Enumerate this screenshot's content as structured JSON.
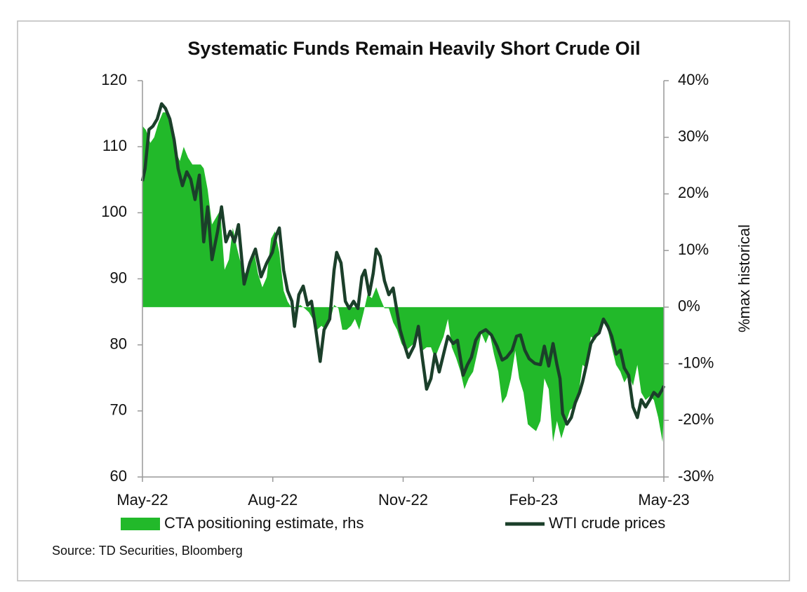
{
  "chart_data": {
    "type": "combo",
    "title": "Systematic Funds Remain Heavily Short Crude Oil",
    "y2label": "%max historical",
    "source": "Source: TD Securities, Bloomberg",
    "xlim": [
      0,
      12
    ],
    "xticks": [
      {
        "value": 0,
        "label": "May-22"
      },
      {
        "value": 3,
        "label": "Aug-22"
      },
      {
        "value": 6,
        "label": "Nov-22"
      },
      {
        "value": 9,
        "label": "Feb-23"
      },
      {
        "value": 12,
        "label": "May-23"
      }
    ],
    "ylim": [
      60,
      120
    ],
    "yticks": [
      60,
      70,
      80,
      90,
      100,
      110,
      120
    ],
    "y2lim": [
      -30,
      40
    ],
    "y2ticks": [
      {
        "value": -30,
        "label": "-30%"
      },
      {
        "value": -20,
        "label": "-20%"
      },
      {
        "value": -10,
        "label": "-10%"
      },
      {
        "value": 0,
        "label": "0%"
      },
      {
        "value": 10,
        "label": "10%"
      },
      {
        "value": 20,
        "label": "20%"
      },
      {
        "value": 30,
        "label": "30%"
      },
      {
        "value": 40,
        "label": "40%"
      }
    ],
    "series": [
      {
        "name": "CTA positioning estimate, rhs",
        "kind": "area",
        "axis": "y2",
        "color": "#22b92a",
        "x": [
          0,
          0.08,
          0.18,
          0.27,
          0.37,
          0.47,
          0.57,
          0.66,
          0.76,
          0.86,
          0.95,
          1.05,
          1.15,
          1.24,
          1.34,
          1.41,
          1.5,
          1.6,
          1.7,
          1.79,
          1.89,
          1.99,
          2.08,
          2.18,
          2.28,
          2.37,
          2.47,
          2.57,
          2.66,
          2.76,
          2.86,
          2.96,
          3.05,
          3.15,
          3.25,
          3.34,
          3.44,
          3.54,
          3.63,
          3.73,
          3.83,
          3.92,
          4.02,
          4.12,
          4.22,
          4.31,
          4.41,
          4.51,
          4.6,
          4.7,
          4.8,
          4.89,
          4.99,
          5.09,
          5.18,
          5.28,
          5.38,
          5.47,
          5.57,
          5.67,
          5.77,
          5.86,
          5.96,
          6.06,
          6.15,
          6.25,
          6.35,
          6.44,
          6.54,
          6.64,
          6.73,
          6.83,
          6.93,
          7.03,
          7.12,
          7.22,
          7.32,
          7.41,
          7.51,
          7.61,
          7.7,
          7.8,
          7.9,
          7.99,
          8.09,
          8.19,
          8.28,
          8.38,
          8.48,
          8.58,
          8.67,
          8.77,
          8.87,
          8.96,
          9.06,
          9.16,
          9.25,
          9.35,
          9.45,
          9.54,
          9.64,
          9.74,
          9.84,
          9.93,
          10.03,
          10.13,
          10.22,
          10.32,
          10.42,
          10.51,
          10.61,
          10.71,
          10.8,
          10.9,
          11,
          11.09,
          11.19,
          11.29,
          11.39,
          11.48,
          11.58,
          11.68,
          11.77,
          11.87,
          11.97,
          12
        ],
        "values": [
          32,
          31.3,
          29,
          30,
          32.6,
          34.4,
          34.4,
          31.3,
          27.6,
          25.8,
          28.3,
          26.4,
          25.2,
          25.2,
          25.2,
          24.5,
          20.8,
          14.6,
          15.9,
          17.1,
          6.6,
          8.4,
          14,
          10.3,
          7.2,
          5.9,
          7.2,
          9.7,
          5.9,
          3.5,
          5.3,
          12.1,
          13.4,
          9.7,
          2.9,
          1,
          -0.2,
          -0.2,
          0.4,
          -0.2,
          -0.9,
          -2.1,
          -4,
          -3.3,
          -4,
          -2.7,
          0.4,
          -0.2,
          -4,
          -4,
          -3.3,
          -2.1,
          -4,
          -0.9,
          2.2,
          1.6,
          3.5,
          1.6,
          -0.2,
          -0.2,
          -2.7,
          -4,
          -6.4,
          -7.7,
          -7.1,
          -6.4,
          -3.3,
          -7.7,
          -7.1,
          -7.1,
          -9,
          -7.1,
          -5.2,
          -2.1,
          -7.1,
          -9,
          -11.4,
          -14.5,
          -12.6,
          -11.4,
          -8.3,
          -4.6,
          -6.4,
          -4.6,
          -8.3,
          -11.4,
          -17,
          -15.7,
          -12.6,
          -7.7,
          -12.6,
          -15.1,
          -20.7,
          -21.3,
          -21.9,
          -20.1,
          -12.6,
          -14.5,
          -23.8,
          -20.1,
          -23.2,
          -20.7,
          -18.2,
          -17.6,
          -15.7,
          -10.2,
          -10.8,
          -5.2,
          -5.8,
          -4.6,
          -2.7,
          -4,
          -7.1,
          -10.2,
          -11.4,
          -13.3,
          -12,
          -13.9,
          -10.2,
          -15.1,
          -16.4,
          -15.7,
          -16.4,
          -19.5,
          -23.8,
          -18.2
        ]
      },
      {
        "name": "WTI crude prices",
        "kind": "line",
        "axis": "y",
        "color": "#1b3f2a",
        "x": [
          0,
          0.06,
          0.15,
          0.24,
          0.34,
          0.44,
          0.53,
          0.63,
          0.73,
          0.82,
          0.92,
          1.02,
          1.11,
          1.21,
          1.31,
          1.41,
          1.5,
          1.6,
          1.73,
          1.82,
          1.92,
          2.02,
          2.12,
          2.21,
          2.34,
          2.47,
          2.6,
          2.73,
          2.86,
          2.99,
          3.08,
          3.15,
          3.25,
          3.34,
          3.44,
          3.5,
          3.6,
          3.7,
          3.8,
          3.89,
          3.99,
          4.09,
          4.18,
          4.31,
          4.41,
          4.47,
          4.57,
          4.67,
          4.76,
          4.86,
          4.96,
          5.05,
          5.12,
          5.22,
          5.31,
          5.38,
          5.47,
          5.57,
          5.67,
          5.77,
          5.86,
          5.93,
          6.02,
          6.12,
          6.25,
          6.35,
          6.44,
          6.54,
          6.64,
          6.73,
          6.83,
          6.93,
          7.03,
          7.15,
          7.25,
          7.38,
          7.48,
          7.57,
          7.67,
          7.77,
          7.9,
          8.03,
          8.16,
          8.28,
          8.38,
          8.51,
          8.61,
          8.7,
          8.8,
          8.9,
          9.03,
          9.16,
          9.25,
          9.35,
          9.45,
          9.54,
          9.61,
          9.67,
          9.77,
          9.87,
          9.96,
          10.06,
          10.13,
          10.22,
          10.32,
          10.42,
          10.51,
          10.61,
          10.71,
          10.8,
          10.9,
          11,
          11.09,
          11.19,
          11.29,
          11.39,
          11.48,
          11.58,
          11.68,
          11.77,
          11.87,
          11.97,
          12
        ],
        "values": [
          104.8,
          106.7,
          112.6,
          113.1,
          114.2,
          116.5,
          115.8,
          114.2,
          111,
          106.7,
          104.1,
          106.2,
          105.1,
          102,
          105.7,
          95.6,
          100.9,
          92.9,
          97.2,
          100.9,
          95.6,
          97.2,
          95.6,
          98.2,
          89.2,
          92.4,
          94.5,
          90.3,
          92.4,
          94,
          96.6,
          97.7,
          91.3,
          88.2,
          86.6,
          82.8,
          87.6,
          88.9,
          86,
          86.6,
          82.3,
          77.5,
          82.3,
          83.9,
          91.3,
          94,
          92.4,
          86.6,
          85.5,
          86.6,
          85.5,
          90.3,
          91.3,
          87.6,
          90.8,
          94.5,
          93.4,
          89.7,
          87.6,
          88.6,
          85,
          82.3,
          80.2,
          78.1,
          79.8,
          82.8,
          78.1,
          73.3,
          74.9,
          78.6,
          75.9,
          78.6,
          81.3,
          80.2,
          80.7,
          75.4,
          77,
          78.1,
          80.7,
          81.8,
          82.3,
          81.5,
          79.8,
          77.7,
          78.1,
          79.2,
          81.3,
          81.5,
          79.2,
          77.9,
          77.2,
          77,
          79.8,
          76.8,
          80.2,
          77,
          74.9,
          69.6,
          68,
          69,
          71.2,
          72.8,
          74.4,
          77,
          80.2,
          81.3,
          81.8,
          83.9,
          82.8,
          81.3,
          78.6,
          79.2,
          76.5,
          75.4,
          70.6,
          69,
          71.7,
          70.6,
          71.7,
          72.8,
          72.2,
          73.3,
          73.8
        ]
      }
    ]
  }
}
